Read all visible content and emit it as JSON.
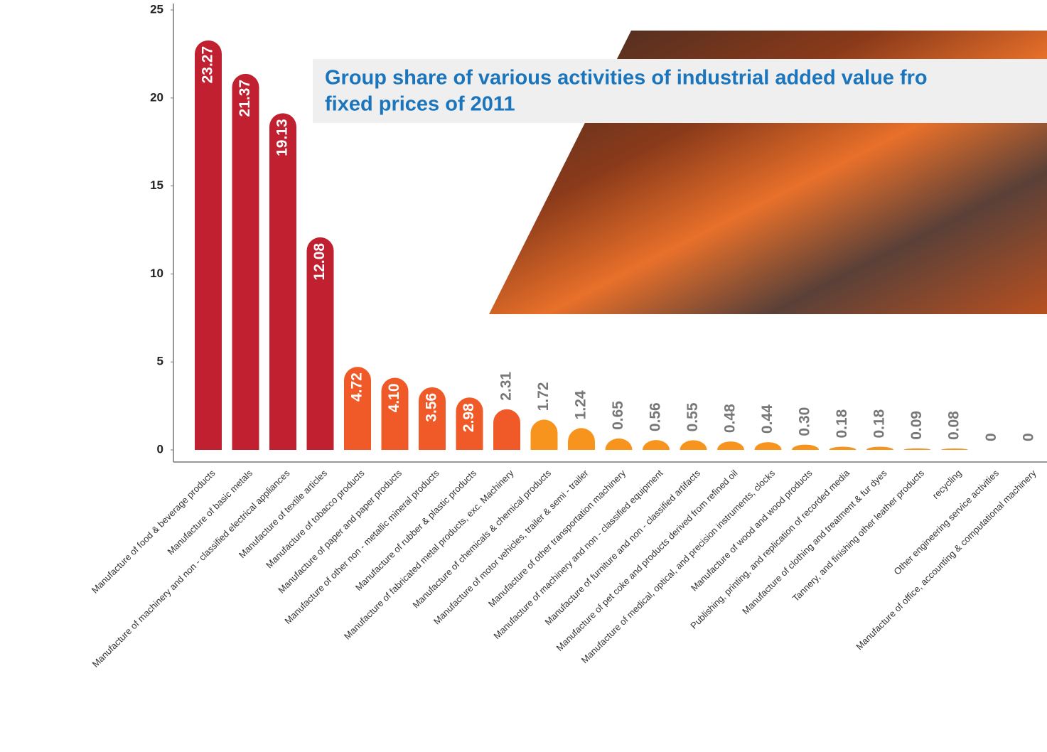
{
  "chart_data": {
    "type": "bar",
    "title": [
      "Group share of various activities of industrial added value fro",
      "fixed prices of 2011"
    ],
    "categories": [
      "Manufacture of food & beverage products",
      "Manufacture of basic metals",
      "Manufacture of machinery and non - classified electrical appliances",
      "Manufacture of textile articles",
      "Manufacture of tobacco products",
      "Manufacture of paper and paper products",
      "Manufacture of other non - metallic mineral products",
      "Manufacture of rubber & plastic products",
      "Manufacture of fabricated metal products, exc. Machinery",
      "Manufacture of chemicals & chemical products",
      "Manufacture of motor vehicles, trailer & semi - trailer",
      "Manufacture of other transportation machinery",
      "Manufacture of machinery and non - classified equipment",
      "Manufacture of furniture and non - classified artifacts",
      "Manufacture of pet coke and products derived from refined oil",
      "Manufacture of medical, optical, and precision instruments, clocks",
      "Manufacture of wood and wood products",
      "Publishing, printing, and replication of recorded media",
      "Manufacture of clothing and treatment & fur dyes",
      "Tannery, and finishing other leather products",
      "recycling",
      "Other engineering service activities",
      "Manufacture of office, accounting & computational machinery"
    ],
    "values": [
      23.27,
      21.37,
      19.13,
      12.08,
      4.72,
      4.1,
      3.56,
      2.98,
      2.31,
      1.72,
      1.24,
      0.65,
      0.56,
      0.55,
      0.48,
      0.44,
      0.3,
      0.18,
      0.18,
      0.09,
      0.08,
      0,
      0
    ],
    "value_labels": [
      "23.27",
      "21.37",
      "19.13",
      "12.08",
      "4.72",
      "4.10",
      "3.56",
      "2.98",
      "2.31",
      "1.72",
      "1.24",
      "0.65",
      "0.56",
      "0.55",
      "0.48",
      "0.44",
      "0.30",
      "0.18",
      "0.18",
      "0.09",
      "0.08",
      "0",
      "0"
    ],
    "colors": [
      "#c0202f",
      "#c0202f",
      "#c0202f",
      "#c0202f",
      "#f05a28",
      "#f05a28",
      "#f05a28",
      "#f05a28",
      "#f05a28",
      "#f7941d",
      "#f7941d",
      "#f7941d",
      "#f7941d",
      "#f7941d",
      "#f7941d",
      "#f7941d",
      "#f7941d",
      "#f7941d",
      "#f7941d",
      "#f7941d",
      "#f7941d",
      "#f7941d",
      "#f7941d"
    ],
    "ylim": [
      0,
      25
    ],
    "yticks": [
      0,
      5,
      10,
      15,
      20,
      25
    ],
    "grid": false
  }
}
